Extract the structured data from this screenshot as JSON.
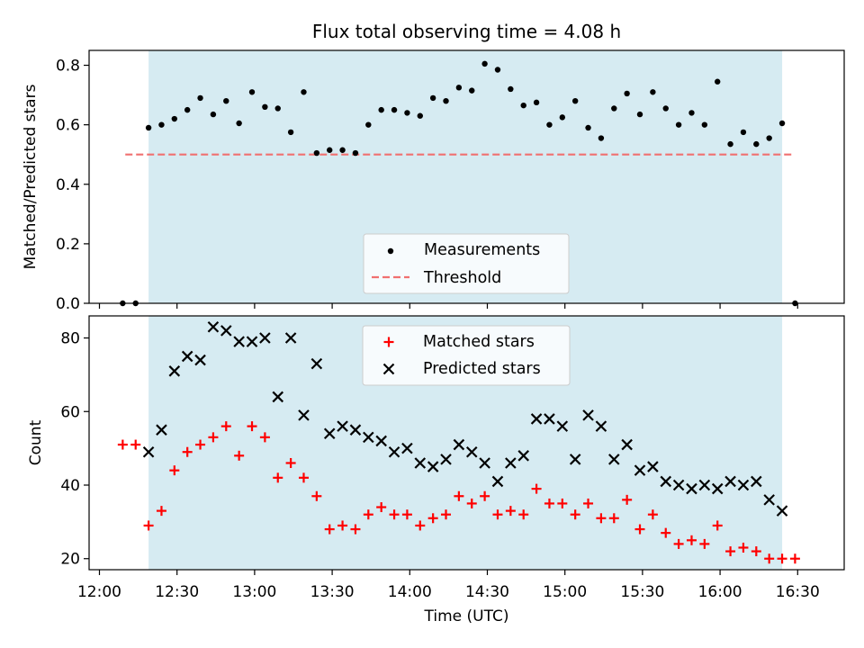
{
  "chart_data": [
    {
      "type": "scatter",
      "title": "Flux total observing time = 4.08 h",
      "xlabel": "",
      "ylabel": "Matched/Predicted stars",
      "ylim": [
        0,
        0.85
      ],
      "yticks": [
        "0.0",
        "0.2",
        "0.4",
        "0.6",
        "0.8"
      ],
      "xlim": [
        "11:56",
        "16:48"
      ],
      "observing_window": [
        "12:19",
        "16:24"
      ],
      "grid": false,
      "legend_position": "lower center",
      "threshold": {
        "name": "Threshold",
        "value": 0.5,
        "x_range": [
          "12:10",
          "16:28"
        ],
        "color": "#f07070"
      },
      "series": [
        {
          "name": "Measurements",
          "color": "#000000",
          "marker": "dot",
          "points": [
            [
              "12:09",
              0.0
            ],
            [
              "12:14",
              0.0
            ],
            [
              "12:19",
              0.59
            ],
            [
              "12:24",
              0.6
            ],
            [
              "12:29",
              0.62
            ],
            [
              "12:34",
              0.65
            ],
            [
              "12:39",
              0.69
            ],
            [
              "12:44",
              0.635
            ],
            [
              "12:49",
              0.68
            ],
            [
              "12:54",
              0.605
            ],
            [
              "12:59",
              0.71
            ],
            [
              "13:04",
              0.66
            ],
            [
              "13:09",
              0.655
            ],
            [
              "13:14",
              0.575
            ],
            [
              "13:19",
              0.71
            ],
            [
              "13:24",
              0.505
            ],
            [
              "13:29",
              0.515
            ],
            [
              "13:34",
              0.515
            ],
            [
              "13:39",
              0.505
            ],
            [
              "13:44",
              0.6
            ],
            [
              "13:49",
              0.65
            ],
            [
              "13:54",
              0.65
            ],
            [
              "13:59",
              0.64
            ],
            [
              "14:04",
              0.63
            ],
            [
              "14:09",
              0.69
            ],
            [
              "14:14",
              0.68
            ],
            [
              "14:19",
              0.725
            ],
            [
              "14:24",
              0.715
            ],
            [
              "14:29",
              0.805
            ],
            [
              "14:34",
              0.785
            ],
            [
              "14:39",
              0.72
            ],
            [
              "14:44",
              0.665
            ],
            [
              "14:49",
              0.675
            ],
            [
              "14:54",
              0.6
            ],
            [
              "14:59",
              0.625
            ],
            [
              "15:04",
              0.68
            ],
            [
              "15:09",
              0.59
            ],
            [
              "15:14",
              0.555
            ],
            [
              "15:19",
              0.655
            ],
            [
              "15:24",
              0.705
            ],
            [
              "15:29",
              0.635
            ],
            [
              "15:34",
              0.71
            ],
            [
              "15:39",
              0.655
            ],
            [
              "15:44",
              0.6
            ],
            [
              "15:49",
              0.64
            ],
            [
              "15:54",
              0.6
            ],
            [
              "15:59",
              0.745
            ],
            [
              "16:04",
              0.535
            ],
            [
              "16:09",
              0.575
            ],
            [
              "16:14",
              0.535
            ],
            [
              "16:19",
              0.555
            ],
            [
              "16:24",
              0.605
            ],
            [
              "16:29",
              0.0
            ]
          ]
        }
      ]
    },
    {
      "type": "scatter",
      "title": "",
      "xlabel": "Time (UTC)",
      "ylabel": "Count",
      "ylim": [
        17,
        86
      ],
      "yticks": [
        "20",
        "40",
        "60",
        "80"
      ],
      "xlim": [
        "11:56",
        "16:48"
      ],
      "xticks": [
        "12:00",
        "12:30",
        "13:00",
        "13:30",
        "14:00",
        "14:30",
        "15:00",
        "15:30",
        "16:00",
        "16:30"
      ],
      "observing_window": [
        "12:19",
        "16:24"
      ],
      "grid": false,
      "legend_position": "upper center",
      "series": [
        {
          "name": "Matched stars",
          "color": "#ff0000",
          "marker": "plus",
          "points": [
            [
              "12:09",
              51
            ],
            [
              "12:14",
              51
            ],
            [
              "12:19",
              29
            ],
            [
              "12:24",
              33
            ],
            [
              "12:29",
              44
            ],
            [
              "12:34",
              49
            ],
            [
              "12:39",
              51
            ],
            [
              "12:44",
              53
            ],
            [
              "12:49",
              56
            ],
            [
              "12:54",
              48
            ],
            [
              "12:59",
              56
            ],
            [
              "13:04",
              53
            ],
            [
              "13:09",
              42
            ],
            [
              "13:14",
              46
            ],
            [
              "13:19",
              42
            ],
            [
              "13:24",
              37
            ],
            [
              "13:29",
              28
            ],
            [
              "13:34",
              29
            ],
            [
              "13:39",
              28
            ],
            [
              "13:44",
              32
            ],
            [
              "13:49",
              34
            ],
            [
              "13:54",
              32
            ],
            [
              "13:59",
              32
            ],
            [
              "14:04",
              29
            ],
            [
              "14:09",
              31
            ],
            [
              "14:14",
              32
            ],
            [
              "14:19",
              37
            ],
            [
              "14:24",
              35
            ],
            [
              "14:29",
              37
            ],
            [
              "14:34",
              32
            ],
            [
              "14:39",
              33
            ],
            [
              "14:44",
              32
            ],
            [
              "14:49",
              39
            ],
            [
              "14:54",
              35
            ],
            [
              "14:59",
              35
            ],
            [
              "15:04",
              32
            ],
            [
              "15:09",
              35
            ],
            [
              "15:14",
              31
            ],
            [
              "15:19",
              31
            ],
            [
              "15:24",
              36
            ],
            [
              "15:29",
              28
            ],
            [
              "15:34",
              32
            ],
            [
              "15:39",
              27
            ],
            [
              "15:44",
              24
            ],
            [
              "15:49",
              25
            ],
            [
              "15:54",
              24
            ],
            [
              "15:59",
              29
            ],
            [
              "16:04",
              22
            ],
            [
              "16:09",
              23
            ],
            [
              "16:14",
              22
            ],
            [
              "16:19",
              20
            ],
            [
              "16:24",
              20
            ],
            [
              "16:29",
              20
            ]
          ]
        },
        {
          "name": "Predicted stars",
          "color": "#000000",
          "marker": "x",
          "points": [
            [
              "12:19",
              49
            ],
            [
              "12:24",
              55
            ],
            [
              "12:29",
              71
            ],
            [
              "12:34",
              75
            ],
            [
              "12:39",
              74
            ],
            [
              "12:44",
              83
            ],
            [
              "12:49",
              82
            ],
            [
              "12:54",
              79
            ],
            [
              "12:59",
              79
            ],
            [
              "13:04",
              80
            ],
            [
              "13:09",
              64
            ],
            [
              "13:14",
              80
            ],
            [
              "13:19",
              59
            ],
            [
              "13:24",
              73
            ],
            [
              "13:29",
              54
            ],
            [
              "13:34",
              56
            ],
            [
              "13:39",
              55
            ],
            [
              "13:44",
              53
            ],
            [
              "13:49",
              52
            ],
            [
              "13:54",
              49
            ],
            [
              "13:59",
              50
            ],
            [
              "14:04",
              46
            ],
            [
              "14:09",
              45
            ],
            [
              "14:14",
              47
            ],
            [
              "14:19",
              51
            ],
            [
              "14:24",
              49
            ],
            [
              "14:29",
              46
            ],
            [
              "14:34",
              41
            ],
            [
              "14:39",
              46
            ],
            [
              "14:44",
              48
            ],
            [
              "14:49",
              58
            ],
            [
              "14:54",
              58
            ],
            [
              "14:59",
              56
            ],
            [
              "15:04",
              47
            ],
            [
              "15:09",
              59
            ],
            [
              "15:14",
              56
            ],
            [
              "15:19",
              47
            ],
            [
              "15:24",
              51
            ],
            [
              "15:29",
              44
            ],
            [
              "15:34",
              45
            ],
            [
              "15:39",
              41
            ],
            [
              "15:44",
              40
            ],
            [
              "15:49",
              39
            ],
            [
              "15:54",
              40
            ],
            [
              "15:59",
              39
            ],
            [
              "16:04",
              41
            ],
            [
              "16:09",
              40
            ],
            [
              "16:14",
              41
            ],
            [
              "16:19",
              36
            ],
            [
              "16:24",
              33
            ]
          ]
        }
      ]
    }
  ],
  "colors": {
    "observing_window": "#add8e6",
    "frame": "#000000"
  }
}
